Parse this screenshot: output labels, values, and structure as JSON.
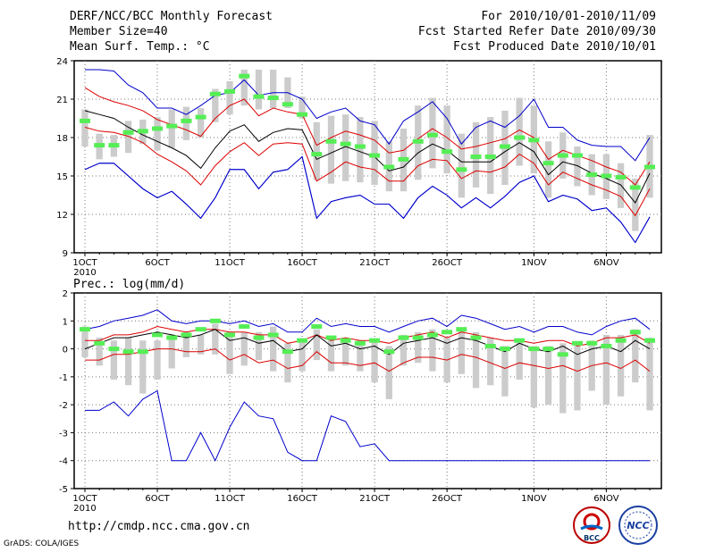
{
  "header": {
    "title": "DERF/NCC/BCC Monthly Forecast",
    "member_size": "Member Size=40",
    "variable": "Mean Surf. Temp.: °C",
    "for_period": "For 2010/10/01-2010/11/09",
    "fcst_started": "Fcst Started Refer Date 2010/09/30",
    "fcst_produced": "Fcst Produced Date 2010/10/01"
  },
  "footer": {
    "url": "http://cmdp.ncc.cma.gov.cn",
    "credit": "GrADS: COLA/IGES",
    "logo_left": "BCC",
    "logo_right": "NCC"
  },
  "colors": {
    "box": "#cccccc",
    "median_marker": "#55ee55",
    "mean": "#000000",
    "spread": "#dd0000",
    "envelope": "#0000cc"
  },
  "chart_data": [
    {
      "type": "line",
      "title": "Mean Surf. Temp.: °C",
      "x": [
        "1OCT",
        "2OCT",
        "3OCT",
        "4OCT",
        "5OCT",
        "6OCT",
        "7OCT",
        "8OCT",
        "9OCT",
        "10OCT",
        "11OCT",
        "12OCT",
        "13OCT",
        "14OCT",
        "15OCT",
        "16OCT",
        "17OCT",
        "18OCT",
        "19OCT",
        "20OCT",
        "21OCT",
        "22OCT",
        "23OCT",
        "24OCT",
        "25OCT",
        "26OCT",
        "27OCT",
        "28OCT",
        "29OCT",
        "30OCT",
        "31OCT",
        "1NOV",
        "2NOV",
        "3NOV",
        "4NOV",
        "5NOV",
        "6NOV",
        "7NOV",
        "8NOV",
        "9NOV"
      ],
      "xtick_labels": [
        "1OCT",
        "6OCT",
        "11OCT",
        "16OCT",
        "21OCT",
        "26OCT",
        "1NOV",
        "6NOV"
      ],
      "xtick_index": [
        0,
        5,
        10,
        15,
        20,
        25,
        31,
        36
      ],
      "year_label": "2010",
      "ylim": [
        9,
        24
      ],
      "yticks": [
        9,
        12,
        15,
        18,
        21,
        24
      ],
      "series": [
        {
          "name": "max",
          "values": [
            15.5,
            16,
            16,
            15,
            14,
            13.3,
            13.8,
            12.8,
            11.7,
            13.3,
            15.5,
            15.5,
            14,
            15.3,
            15.5,
            16.5,
            11.7,
            13,
            13.3,
            13.5,
            12.8,
            12.8,
            11.7,
            13.3,
            14.2,
            13.5,
            12.5,
            13.3,
            12.5,
            13.4,
            14.5,
            15,
            13,
            13.5,
            13.2,
            12.3,
            12.5,
            11.4,
            9.8,
            11.8
          ]
        },
        {
          "name": "upper",
          "values": [
            23.3,
            23.3,
            23.2,
            22.1,
            21.5,
            20.3,
            20.3,
            19.8,
            20.5,
            21.3,
            21.5,
            22.5,
            21.3,
            21.5,
            21.5,
            21,
            19.5,
            20,
            20.3,
            19.3,
            19,
            17.5,
            19.3,
            20,
            20.8,
            19.5,
            17.5,
            18.8,
            19.3,
            18.8,
            19.7,
            21,
            18.8,
            18.8,
            17.8,
            17.4,
            17.3,
            17.3,
            16.2,
            18
          ]
        },
        {
          "name": "p_hi",
          "values": [
            21.9,
            21.2,
            20.8,
            20.5,
            20.1,
            19.4,
            19,
            18.6,
            18.1,
            19.5,
            20.5,
            21,
            19.7,
            20.3,
            20,
            19.8,
            17.4,
            18,
            18.5,
            18.2,
            17.8,
            16.8,
            17,
            17.9,
            18.7,
            18,
            17.1,
            17.3,
            17.6,
            17.9,
            18.6,
            18,
            16.3,
            17,
            16.6,
            16.2,
            15.7,
            15.3,
            14.3,
            16.1
          ]
        },
        {
          "name": "mean",
          "values": [
            20.1,
            19.8,
            19.5,
            18.8,
            18.2,
            17.7,
            17.2,
            16.6,
            15.6,
            17.2,
            18.5,
            19,
            17.7,
            18.4,
            18.7,
            18.6,
            16.3,
            16.8,
            17.3,
            16.9,
            16.5,
            15.4,
            15.7,
            16.8,
            17.5,
            17,
            16.1,
            16.1,
            16.1,
            16.9,
            17.6,
            16.9,
            15.1,
            16.1,
            15.8,
            15.2,
            14.8,
            14.3,
            12.9,
            15.2
          ]
        },
        {
          "name": "p_lo",
          "values": [
            18.8,
            18.5,
            18.4,
            18.1,
            17.6,
            16.7,
            16.1,
            15.4,
            14.3,
            15.8,
            16.9,
            17.6,
            16.6,
            17.5,
            17.6,
            17.5,
            14.6,
            15.3,
            16.1,
            15.7,
            15.5,
            14.6,
            14.6,
            15.8,
            16.3,
            16.2,
            14.8,
            15.4,
            15.3,
            15.7,
            16.7,
            16,
            14.3,
            15.3,
            14.8,
            14.3,
            13.9,
            13.4,
            11.9,
            14
          ]
        },
        {
          "name": "min",
          "values": [
            15.5,
            16,
            16,
            15,
            14,
            13.3,
            13.8,
            12.8,
            11.7,
            13.3,
            15.5,
            15.5,
            14,
            15.3,
            15.5,
            16.5,
            11.7,
            13,
            13.3,
            13.5,
            12.8,
            12.8,
            11.7,
            13.3,
            14.2,
            13.5,
            12.5,
            13.3,
            12.5,
            13.4,
            14.5,
            15,
            13,
            13.5,
            13.2,
            12.3,
            12.5,
            11.4,
            9.8,
            11.8
          ]
        }
      ],
      "boxes": {
        "low": [
          17.3,
          16.3,
          16.5,
          16.8,
          17.5,
          17,
          17.2,
          17.8,
          18,
          19.2,
          19.8,
          20.5,
          20.2,
          20.3,
          20.3,
          19.5,
          14.7,
          14.4,
          14.6,
          14.5,
          14.3,
          13.8,
          13.8,
          14.7,
          15.6,
          15.2,
          13.3,
          14.1,
          13.6,
          14.3,
          15.8,
          15.2,
          13.3,
          14.8,
          14.2,
          13.5,
          13.2,
          12.5,
          10.7,
          13.3
        ],
        "high": [
          20.2,
          18.3,
          18.2,
          19.3,
          19.4,
          19.6,
          20.2,
          20.4,
          20.3,
          21.8,
          22.4,
          23.3,
          23.3,
          23.3,
          22.7,
          21.2,
          19.2,
          19.7,
          19.8,
          19.6,
          19.3,
          17.7,
          18.7,
          20.5,
          21.1,
          20.5,
          18.3,
          19.2,
          19.6,
          20.1,
          21.1,
          20.5,
          17.7,
          18.4,
          17.3,
          16.7,
          16.7,
          16,
          14.8,
          18.2
        ]
      },
      "median": [
        19.3,
        17.4,
        17.4,
        18.4,
        18.5,
        18.7,
        18.9,
        19.3,
        19.6,
        21.4,
        21.6,
        22.8,
        21.2,
        21.1,
        20.6,
        19.8,
        16.7,
        17.7,
        17.5,
        17.3,
        16.6,
        15.7,
        16.3,
        17.7,
        18.2,
        16.9,
        15.5,
        16.5,
        16.5,
        17.3,
        18,
        17.8,
        16,
        16.6,
        16.6,
        15.1,
        15,
        14.9,
        14.1,
        15.7
      ]
    },
    {
      "type": "line",
      "title": "Prec.: log(mm/d)",
      "x": [
        "1OCT",
        "2OCT",
        "3OCT",
        "4OCT",
        "5OCT",
        "6OCT",
        "7OCT",
        "8OCT",
        "9OCT",
        "10OCT",
        "11OCT",
        "12OCT",
        "13OCT",
        "14OCT",
        "15OCT",
        "16OCT",
        "17OCT",
        "18OCT",
        "19OCT",
        "20OCT",
        "21OCT",
        "22OCT",
        "23OCT",
        "24OCT",
        "25OCT",
        "26OCT",
        "27OCT",
        "28OCT",
        "29OCT",
        "30OCT",
        "31OCT",
        "1NOV",
        "2NOV",
        "3NOV",
        "4NOV",
        "5NOV",
        "6NOV",
        "7NOV",
        "8NOV",
        "9NOV"
      ],
      "xtick_labels": [
        "1OCT",
        "6OCT",
        "11OCT",
        "16OCT",
        "21OCT",
        "26OCT",
        "1NOV",
        "6NOV"
      ],
      "xtick_index": [
        0,
        5,
        10,
        15,
        20,
        25,
        31,
        36
      ],
      "year_label": "2010",
      "ylim": [
        -5,
        2
      ],
      "yticks": [
        -5,
        -4,
        -3,
        -2,
        -1,
        0,
        1,
        2
      ],
      "series": [
        {
          "name": "min",
          "values": [
            -2.2,
            -2.2,
            -1.9,
            -2.4,
            -1.8,
            -1.5,
            -4,
            -4,
            -3,
            -4,
            -2.8,
            -1.9,
            -2.4,
            -2.5,
            -3.7,
            -4,
            -4,
            -2.4,
            -2.6,
            -3.5,
            -3.4,
            -4,
            -4,
            -4,
            -4,
            -4,
            -4,
            -4,
            -4,
            -4,
            -4,
            -4,
            -4,
            -4,
            -4,
            -4,
            -4,
            -4,
            -4,
            -4
          ]
        },
        {
          "name": "max",
          "values": [
            0.7,
            0.8,
            1,
            1.1,
            1.2,
            1.4,
            1,
            0.9,
            1,
            1,
            0.9,
            1,
            0.8,
            0.9,
            0.6,
            0.6,
            1.1,
            0.8,
            0.9,
            0.8,
            0.8,
            0.6,
            0.8,
            1,
            1.1,
            0.8,
            1.2,
            1.1,
            0.9,
            0.7,
            0.8,
            0.6,
            0.8,
            0.8,
            0.6,
            0.5,
            0.8,
            1,
            1.1,
            0.7
          ]
        },
        {
          "name": "p_hi",
          "values": [
            0.3,
            0.3,
            0.5,
            0.5,
            0.6,
            0.8,
            0.7,
            0.6,
            0.7,
            0.7,
            0.6,
            0.6,
            0.5,
            0.5,
            0.2,
            0.3,
            0.5,
            0.3,
            0.4,
            0.3,
            0.3,
            0.2,
            0.4,
            0.5,
            0.6,
            0.4,
            0.6,
            0.5,
            0.4,
            0.3,
            0.3,
            0.2,
            0.3,
            0.3,
            0.1,
            0.2,
            0.4,
            0.4,
            0.5,
            0.2
          ]
        },
        {
          "name": "mean",
          "values": [
            0,
            0.2,
            0.4,
            0.4,
            0.5,
            0.6,
            0.5,
            0.4,
            0.5,
            0.7,
            0.3,
            0.4,
            0.2,
            0.3,
            -0.1,
            0,
            0.5,
            0.1,
            0.2,
            0,
            0.1,
            -0.2,
            0.2,
            0.3,
            0.4,
            0.2,
            0.4,
            0.3,
            0.1,
            -0.1,
            0.2,
            0,
            -0.1,
            0.1,
            -0.2,
            0,
            0.1,
            -0.1,
            0.3,
            0
          ]
        },
        {
          "name": "p_lo",
          "values": [
            -0.4,
            -0.4,
            -0.2,
            -0.2,
            -0.1,
            0,
            0,
            -0.1,
            -0.1,
            0,
            -0.4,
            -0.2,
            -0.5,
            -0.4,
            -0.7,
            -0.6,
            -0.1,
            -0.5,
            -0.5,
            -0.6,
            -0.5,
            -0.8,
            -0.5,
            -0.3,
            -0.3,
            -0.4,
            -0.2,
            -0.3,
            -0.5,
            -0.7,
            -0.5,
            -0.6,
            -0.7,
            -0.6,
            -0.8,
            -0.6,
            -0.5,
            -0.7,
            -0.4,
            -0.8
          ]
        }
      ],
      "boxes": {
        "low": [
          -0.3,
          -0.6,
          -1.1,
          -1.3,
          -1.6,
          -1.1,
          -0.7,
          -0.3,
          -0.2,
          -0.2,
          -0.9,
          -0.6,
          -0.4,
          -0.8,
          -1.2,
          -0.8,
          -0.4,
          -0.8,
          -0.6,
          -0.8,
          -1.2,
          -1.8,
          -0.6,
          -0.5,
          -0.8,
          -1.2,
          -0.9,
          -1.4,
          -1.3,
          -1.7,
          -1.1,
          -2.1,
          -2,
          -2.3,
          -2.2,
          -1.5,
          -2,
          -1.7,
          -1.2,
          -2.2
        ],
        "high": [
          0.8,
          0.4,
          0.3,
          0.4,
          0.3,
          0.3,
          0.5,
          0.6,
          0.5,
          0.9,
          0.6,
          0.6,
          0.6,
          0.8,
          0.2,
          0.3,
          0.7,
          0.4,
          0.4,
          0.3,
          0.3,
          0.1,
          0.5,
          0.6,
          0.7,
          0.4,
          0.7,
          0.6,
          0.4,
          0.1,
          0.3,
          0.1,
          0.1,
          0.2,
          0.1,
          0.3,
          0.5,
          0.5,
          0.7,
          0.4
        ]
      },
      "median": [
        0.7,
        0.2,
        0,
        -0.1,
        -0.1,
        0.5,
        0.4,
        0.5,
        0.7,
        1,
        0.5,
        0.8,
        0.4,
        0.5,
        -0.1,
        0.3,
        0.8,
        0.4,
        0.3,
        0.2,
        0.3,
        -0.1,
        0.4,
        0.4,
        0.5,
        0.6,
        0.7,
        0.4,
        0.1,
        0,
        0.3,
        0,
        0,
        -0.2,
        0.2,
        0.2,
        0.1,
        0.3,
        0.6,
        0.3
      ]
    }
  ]
}
